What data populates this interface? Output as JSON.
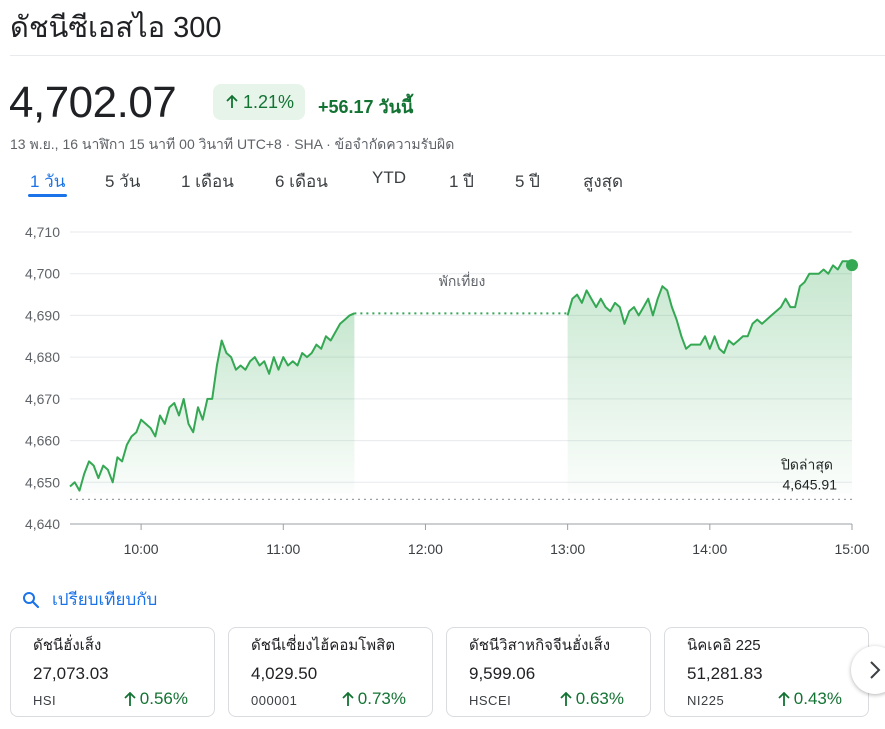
{
  "header": {
    "title": "ดัชนีซีเอสไอ 300",
    "price": "4,702.07",
    "pct_change": "1.21%",
    "abs_change": "+56.17 วันนี้",
    "meta": "13 พ.ย., 16 นาฬิกา 15 นาที 00 วินาที UTC+8 · SHA · ข้อจำกัดความรับผิด"
  },
  "tabs": [
    "1 วัน",
    "5 วัน",
    "1 เดือน",
    "6 เดือน",
    "YTD",
    "1 ปี",
    "5 ปี",
    "สูงสุด"
  ],
  "active_tab": "1 วัน",
  "colors": {
    "up": "#137333",
    "line": "#34a853",
    "accent": "#1a73e8"
  },
  "chart_data": {
    "type": "line",
    "ylim": [
      4640,
      4710
    ],
    "y_ticks": [
      "4,640",
      "4,650",
      "4,660",
      "4,670",
      "4,680",
      "4,690",
      "4,700",
      "4,710"
    ],
    "x_ticks": [
      "10:00",
      "11:00",
      "12:00",
      "13:00",
      "14:00",
      "15:00"
    ],
    "xlim": [
      "09:30",
      "15:00"
    ],
    "lunch_label": "พักเที่ยง",
    "prev_close_label": "ปิดล่าสุด",
    "prev_close_value": "4,645.91",
    "prev_close": 4645.91,
    "gridlines": true,
    "series": [
      {
        "x": [
          "09:30",
          "09:32",
          "09:34",
          "09:36",
          "09:38",
          "09:40",
          "09:42",
          "09:44",
          "09:46",
          "09:48",
          "09:50",
          "09:52",
          "09:54",
          "09:56",
          "09:58",
          "10:00",
          "10:02",
          "10:04",
          "10:06",
          "10:08",
          "10:10",
          "10:12",
          "10:14",
          "10:16",
          "10:18",
          "10:20",
          "10:22",
          "10:24",
          "10:26",
          "10:28",
          "10:30",
          "10:32",
          "10:34",
          "10:36",
          "10:38",
          "10:40",
          "10:42",
          "10:44",
          "10:46",
          "10:48",
          "10:50",
          "10:52",
          "10:54",
          "10:56",
          "10:58",
          "11:00",
          "11:02",
          "11:04",
          "11:06",
          "11:08",
          "11:10",
          "11:12",
          "11:14",
          "11:16",
          "11:18",
          "11:20",
          "11:22",
          "11:24",
          "11:26",
          "11:28",
          "11:30"
        ],
        "values": [
          4649,
          4650,
          4648,
          4652,
          4655,
          4654,
          4651,
          4654,
          4653,
          4650,
          4656,
          4655,
          4659,
          4661,
          4662,
          4665,
          4664,
          4663,
          4661,
          4666,
          4664,
          4668,
          4669,
          4666,
          4670,
          4664,
          4662,
          4668,
          4665,
          4670,
          4670,
          4678,
          4684,
          4681,
          4680,
          4677,
          4678,
          4677,
          4679,
          4680,
          4678,
          4679,
          4676,
          4680,
          4677,
          4680,
          4678,
          4679,
          4678,
          4681,
          4680,
          4681,
          4683,
          4682,
          4685,
          4684,
          4686,
          4688,
          4689,
          4690,
          4690.5
        ],
        "name": ""
      },
      {
        "x": [
          "13:00",
          "13:02",
          "13:04",
          "13:06",
          "13:08",
          "13:10",
          "13:12",
          "13:14",
          "13:16",
          "13:18",
          "13:20",
          "13:22",
          "13:24",
          "13:26",
          "13:28",
          "13:30",
          "13:32",
          "13:34",
          "13:36",
          "13:38",
          "13:40",
          "13:42",
          "13:44",
          "13:46",
          "13:48",
          "13:50",
          "13:52",
          "13:54",
          "13:56",
          "13:58",
          "14:00",
          "14:02",
          "14:04",
          "14:06",
          "14:08",
          "14:10",
          "14:12",
          "14:14",
          "14:16",
          "14:18",
          "14:20",
          "14:22",
          "14:24",
          "14:26",
          "14:28",
          "14:30",
          "14:32",
          "14:34",
          "14:36",
          "14:38",
          "14:40",
          "14:42",
          "14:44",
          "14:46",
          "14:48",
          "14:50",
          "14:52",
          "14:54",
          "14:56",
          "14:58",
          "15:00"
        ],
        "values": [
          4690,
          4694,
          4695,
          4693,
          4696,
          4694,
          4692,
          4694,
          4692,
          4691,
          4693,
          4692,
          4688,
          4691,
          4692,
          4690,
          4692,
          4694,
          4690,
          4694,
          4697,
          4696,
          4692,
          4689,
          4685,
          4682,
          4683,
          4683,
          4683,
          4685,
          4682,
          4685,
          4682,
          4681,
          4684,
          4683,
          4684,
          4685,
          4685,
          4688,
          4689,
          4688,
          4689,
          4690,
          4691,
          4692,
          4694,
          4692,
          4692,
          4697,
          4698,
          4700,
          4700,
          4700,
          4701,
          4700,
          4702,
          4701,
          4703,
          4703,
          4702.07
        ],
        "name": ""
      }
    ]
  },
  "compare_label": "เปรียบเทียบกับ",
  "compare_cards": [
    {
      "name": "ดัชนีฮั่งเส็ง",
      "price": "27,073.03",
      "symbol": "HSI",
      "change": "0.56%"
    },
    {
      "name": "ดัชนีเซี่ยงไฮ้คอมโพสิต",
      "price": "4,029.50",
      "symbol": "000001",
      "change": "0.73%"
    },
    {
      "name": "ดัชนีวิสาหกิจจีนฮั่งเส็ง",
      "price": "9,599.06",
      "symbol": "HSCEI",
      "change": "0.63%"
    },
    {
      "name": "นิคเคอิ 225",
      "price": "51,281.83",
      "symbol": "NI225",
      "change": "0.43%"
    }
  ]
}
